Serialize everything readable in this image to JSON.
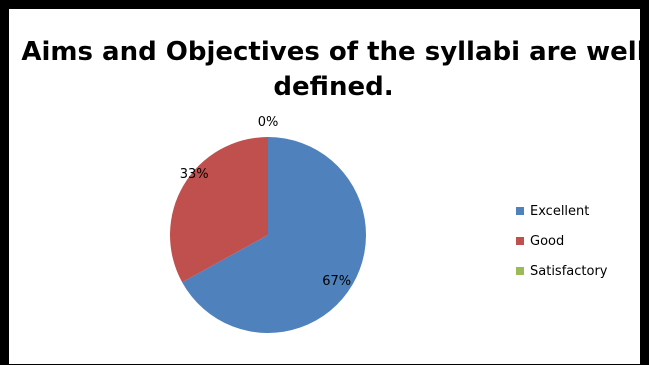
{
  "chart_data": {
    "type": "pie",
    "title": "Aims and Objectives of the syllabi are well defined.",
    "categories": [
      "Excellent",
      "Good",
      "Satisfactory"
    ],
    "values": [
      67,
      33,
      0
    ],
    "value_labels": [
      "67%",
      "33%",
      "0%"
    ],
    "colors": [
      "#4F81BD",
      "#C0504D",
      "#9BBB59"
    ],
    "legend_position": "right"
  }
}
